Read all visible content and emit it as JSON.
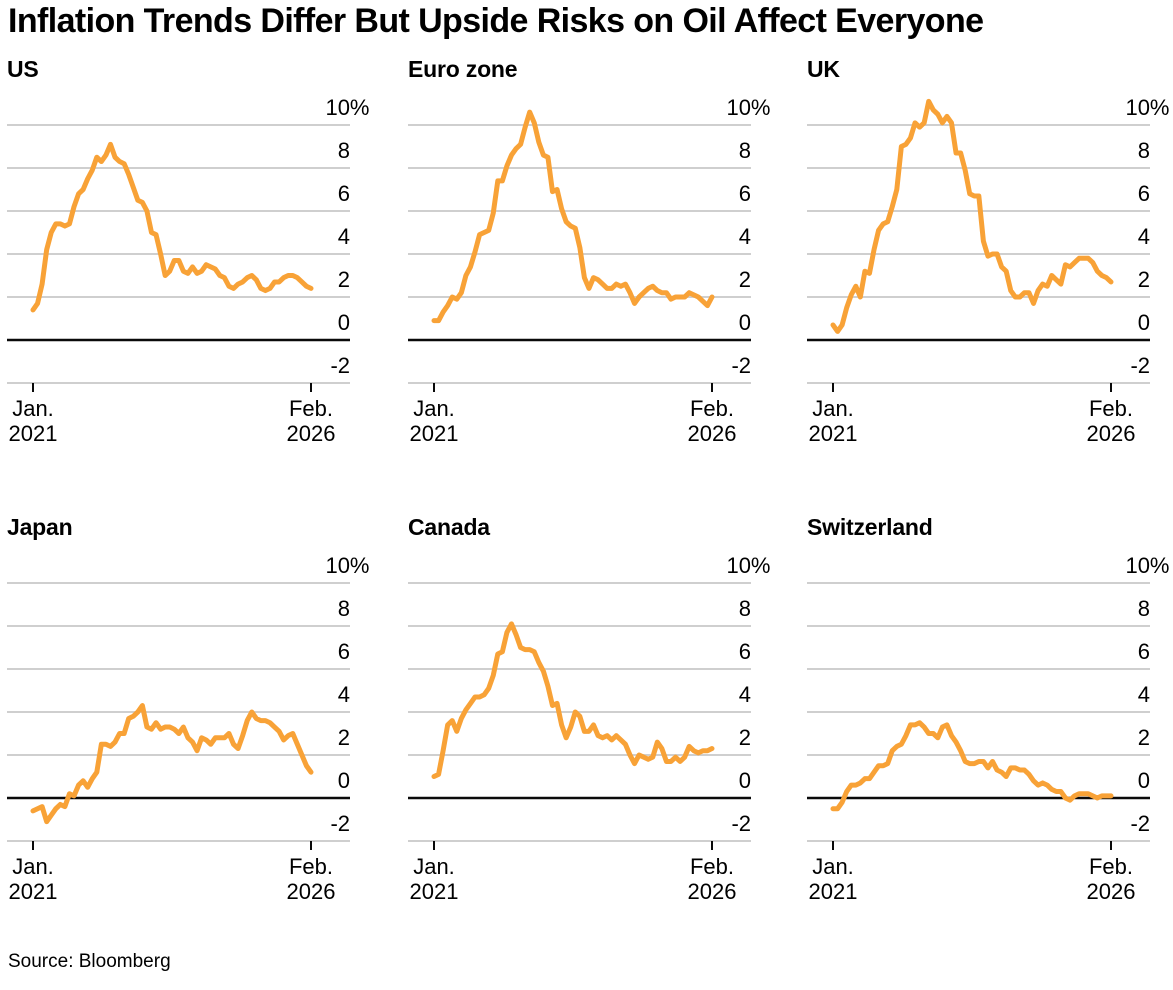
{
  "title": "Inflation Trends Differ But Upside Risks on Oil Affect Everyone",
  "source": "Source: Bloomberg",
  "colors": {
    "line": "#F8A237",
    "grid": "#CFCFCF",
    "zero_line": "#0A0A0A",
    "text": "#000000",
    "background": "#FFFFFF"
  },
  "chart_data": {
    "type": "line",
    "layout": "2x3-small-multiples",
    "title": "Inflation Trends Differ But Upside Risks on Oil Affect Everyone",
    "x": {
      "unit": "month",
      "n_points": 62,
      "start_label": [
        "Jan.",
        "2021"
      ],
      "end_label": [
        "Feb.",
        "2026"
      ]
    },
    "y": {
      "tick_labels": [
        "10%",
        "8",
        "6",
        "4",
        "2",
        "0",
        "-2"
      ],
      "tick_values": [
        10,
        8,
        6,
        4,
        2,
        0,
        -2
      ],
      "range": [
        -2,
        10
      ],
      "zero_line": true,
      "grid": true
    },
    "panels": [
      {
        "title": "US",
        "values": [
          1.4,
          1.7,
          2.6,
          4.2,
          5.0,
          5.4,
          5.4,
          5.3,
          5.4,
          6.2,
          6.8,
          7.0,
          7.5,
          7.9,
          8.5,
          8.3,
          8.6,
          9.1,
          8.5,
          8.3,
          8.2,
          7.7,
          7.1,
          6.5,
          6.4,
          6.0,
          5.0,
          4.9,
          4.0,
          3.0,
          3.2,
          3.7,
          3.7,
          3.2,
          3.1,
          3.4,
          3.1,
          3.2,
          3.5,
          3.4,
          3.3,
          3.0,
          2.9,
          2.5,
          2.4,
          2.6,
          2.7,
          2.9,
          3.0,
          2.8,
          2.4,
          2.3,
          2.4,
          2.7,
          2.7,
          2.9,
          3.0,
          3.0,
          2.9,
          2.7,
          2.5,
          2.4
        ]
      },
      {
        "title": "Euro zone",
        "values": [
          0.9,
          0.9,
          1.3,
          1.6,
          2.0,
          1.9,
          2.2,
          3.0,
          3.4,
          4.1,
          4.9,
          5.0,
          5.1,
          5.9,
          7.4,
          7.4,
          8.1,
          8.6,
          8.9,
          9.1,
          9.9,
          10.6,
          10.1,
          9.2,
          8.6,
          8.5,
          6.9,
          7.0,
          6.1,
          5.5,
          5.3,
          5.2,
          4.3,
          2.9,
          2.4,
          2.9,
          2.8,
          2.6,
          2.4,
          2.4,
          2.6,
          2.5,
          2.6,
          2.2,
          1.7,
          2.0,
          2.2,
          2.4,
          2.5,
          2.3,
          2.2,
          2.2,
          1.9,
          2.0,
          2.0,
          2.0,
          2.2,
          2.1,
          2.0,
          1.8,
          1.6,
          2.0
        ]
      },
      {
        "title": "UK",
        "values": [
          0.7,
          0.4,
          0.7,
          1.5,
          2.1,
          2.5,
          2.0,
          3.2,
          3.1,
          4.2,
          5.1,
          5.4,
          5.5,
          6.2,
          7.0,
          9.0,
          9.1,
          9.4,
          10.1,
          9.9,
          10.1,
          11.1,
          10.7,
          10.5,
          10.1,
          10.4,
          10.1,
          8.7,
          8.7,
          7.9,
          6.8,
          6.7,
          6.7,
          4.6,
          3.9,
          4.0,
          4.0,
          3.4,
          3.2,
          2.3,
          2.0,
          2.0,
          2.2,
          2.2,
          1.7,
          2.3,
          2.6,
          2.5,
          3.0,
          2.8,
          2.6,
          3.5,
          3.4,
          3.6,
          3.8,
          3.8,
          3.8,
          3.6,
          3.2,
          3.0,
          2.9,
          2.7
        ]
      },
      {
        "title": "Japan",
        "values": [
          -0.6,
          -0.5,
          -0.4,
          -1.1,
          -0.8,
          -0.5,
          -0.3,
          -0.4,
          0.2,
          0.1,
          0.6,
          0.8,
          0.5,
          0.9,
          1.2,
          2.5,
          2.5,
          2.4,
          2.6,
          3.0,
          3.0,
          3.7,
          3.8,
          4.0,
          4.3,
          3.3,
          3.2,
          3.5,
          3.2,
          3.3,
          3.3,
          3.2,
          3.0,
          3.3,
          2.8,
          2.6,
          2.2,
          2.8,
          2.7,
          2.5,
          2.8,
          2.8,
          2.8,
          3.0,
          2.5,
          2.3,
          2.9,
          3.6,
          4.0,
          3.7,
          3.6,
          3.6,
          3.5,
          3.3,
          3.1,
          2.7,
          2.9,
          3.0,
          2.5,
          2.0,
          1.5,
          1.2
        ]
      },
      {
        "title": "Canada",
        "values": [
          1.0,
          1.1,
          2.2,
          3.4,
          3.6,
          3.1,
          3.7,
          4.1,
          4.4,
          4.7,
          4.7,
          4.8,
          5.1,
          5.7,
          6.7,
          6.8,
          7.7,
          8.1,
          7.6,
          7.0,
          6.9,
          6.9,
          6.8,
          6.3,
          5.9,
          5.2,
          4.3,
          4.4,
          3.4,
          2.8,
          3.3,
          4.0,
          3.8,
          3.1,
          3.1,
          3.4,
          2.9,
          2.8,
          2.9,
          2.7,
          2.9,
          2.7,
          2.5,
          2.0,
          1.6,
          2.0,
          1.9,
          1.8,
          1.9,
          2.6,
          2.3,
          1.7,
          1.7,
          1.9,
          1.7,
          1.9,
          2.4,
          2.2,
          2.1,
          2.2,
          2.2,
          2.3
        ]
      },
      {
        "title": "Switzerland",
        "values": [
          -0.5,
          -0.5,
          -0.2,
          0.3,
          0.6,
          0.6,
          0.7,
          0.9,
          0.9,
          1.2,
          1.5,
          1.5,
          1.6,
          2.2,
          2.4,
          2.5,
          2.9,
          3.4,
          3.4,
          3.5,
          3.3,
          3.0,
          3.0,
          2.8,
          3.3,
          3.4,
          2.9,
          2.6,
          2.2,
          1.7,
          1.6,
          1.6,
          1.7,
          1.7,
          1.4,
          1.7,
          1.3,
          1.2,
          1.0,
          1.4,
          1.4,
          1.3,
          1.3,
          1.1,
          0.8,
          0.6,
          0.7,
          0.6,
          0.4,
          0.3,
          0.3,
          0.0,
          -0.1,
          0.1,
          0.2,
          0.2,
          0.2,
          0.1,
          0.0,
          0.1,
          0.1,
          0.1
        ]
      }
    ]
  }
}
